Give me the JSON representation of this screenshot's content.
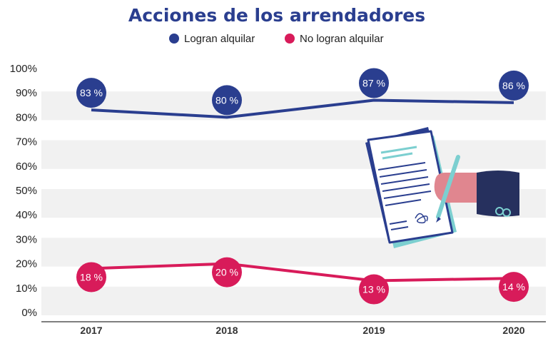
{
  "chart_data": {
    "type": "line",
    "title": "Acciones de los arrendadores",
    "categories": [
      "2017",
      "2018",
      "2019",
      "2020"
    ],
    "ylim": [
      0,
      100
    ],
    "yticks": [
      "0%",
      "10%",
      "20%",
      "30%",
      "40%",
      "50%",
      "60%",
      "70%",
      "80%",
      "90%",
      "100%"
    ],
    "legend_position": "top-center",
    "series": [
      {
        "name": "Logran alquilar",
        "color": "#2a3e8f",
        "values": [
          83,
          80,
          87,
          86
        ],
        "labels": [
          "83 %",
          "80 %",
          "87 %",
          "86 %"
        ]
      },
      {
        "name": "No logran alquilar",
        "color": "#d81b5a",
        "values": [
          18,
          20,
          13,
          14
        ],
        "labels": [
          "18 %",
          "20 %",
          "13 %",
          "14 %"
        ]
      }
    ]
  },
  "illustration": {
    "icon": "contract-signing-icon"
  }
}
